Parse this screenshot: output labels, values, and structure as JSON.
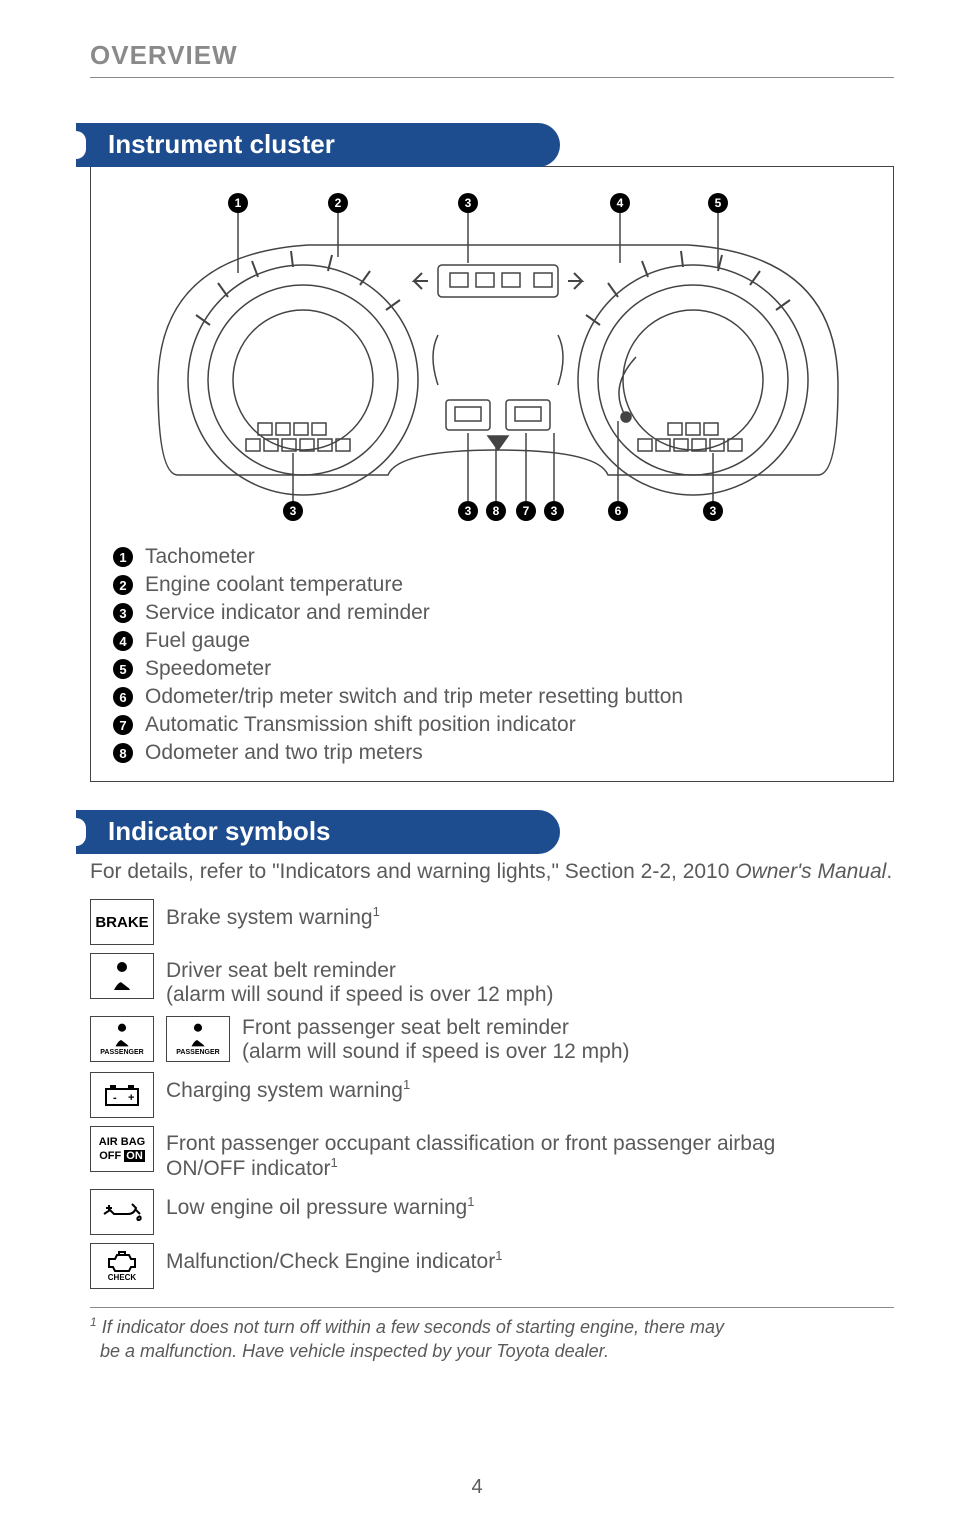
{
  "header": "OVERVIEW",
  "sections": {
    "cluster": {
      "title": "Instrument cluster"
    },
    "indicators": {
      "title": "Indicator symbols",
      "intro_a": "For details, refer to \"Indicators and warning lights,\" Section 2-2, 2010 ",
      "intro_b": "Owner's Manual",
      "intro_c": "."
    }
  },
  "cluster_callouts_top": [
    1,
    2,
    3,
    4,
    5
  ],
  "cluster_callouts_bottom": [
    3,
    3,
    8,
    7,
    3,
    6,
    3
  ],
  "legend": [
    {
      "n": 1,
      "label": "Tachometer"
    },
    {
      "n": 2,
      "label": "Engine coolant temperature"
    },
    {
      "n": 3,
      "label": "Service indicator and reminder"
    },
    {
      "n": 4,
      "label": "Fuel gauge"
    },
    {
      "n": 5,
      "label": "Speedometer"
    },
    {
      "n": 6,
      "label": "Odometer/trip meter switch and trip meter resetting button"
    },
    {
      "n": 7,
      "label": "Automatic Transmission shift position indicator"
    },
    {
      "n": 8,
      "label": "Odometer and two trip meters"
    }
  ],
  "indicator_rows": [
    {
      "symbol": "BRAKE",
      "text": "Brake system warning",
      "sup": "1",
      "style": "brake"
    },
    {
      "symbol": "seatbelt",
      "text_a": "Driver seat belt reminder",
      "text_b": "(alarm will sound if speed is over 12 mph)"
    },
    {
      "symbol": "seatbelt-pass",
      "nested_symbol": "seatbelt-pass",
      "text_a": "Front passenger seat belt reminder",
      "text_b": "(alarm will sound if speed is over 12 mph)"
    },
    {
      "symbol": "battery",
      "text": "Charging system warning",
      "sup": "1"
    },
    {
      "symbol": "airbag",
      "text_a": "Front passenger occupant classification or front passenger airbag",
      "text_b": "ON/OFF indicator",
      "sup": "1"
    },
    {
      "symbol": "oil",
      "text": "Low engine oil pressure warning",
      "sup": "1"
    },
    {
      "symbol": "check-engine",
      "text": "Malfunction/Check Engine indicator",
      "sup": "1"
    }
  ],
  "symbol_labels": {
    "passenger": "PASSENGER",
    "airbag_l1": "AIR BAG",
    "airbag_l2a": "OFF",
    "airbag_l2b": "ON",
    "check": "CHECK",
    "brake": "BRAKE"
  },
  "footnote": {
    "marker": "1",
    "line1": " If indicator does not turn off within a few seconds of starting engine, there may",
    "line2": "be a malfunction. Have vehicle inspected by your Toyota dealer."
  },
  "page_number": "4",
  "colors": {
    "tab_bg": "#1d4c8f",
    "text_gray": "#5a5a5a",
    "header_gray": "#8a8a8a",
    "line": "#444444"
  }
}
